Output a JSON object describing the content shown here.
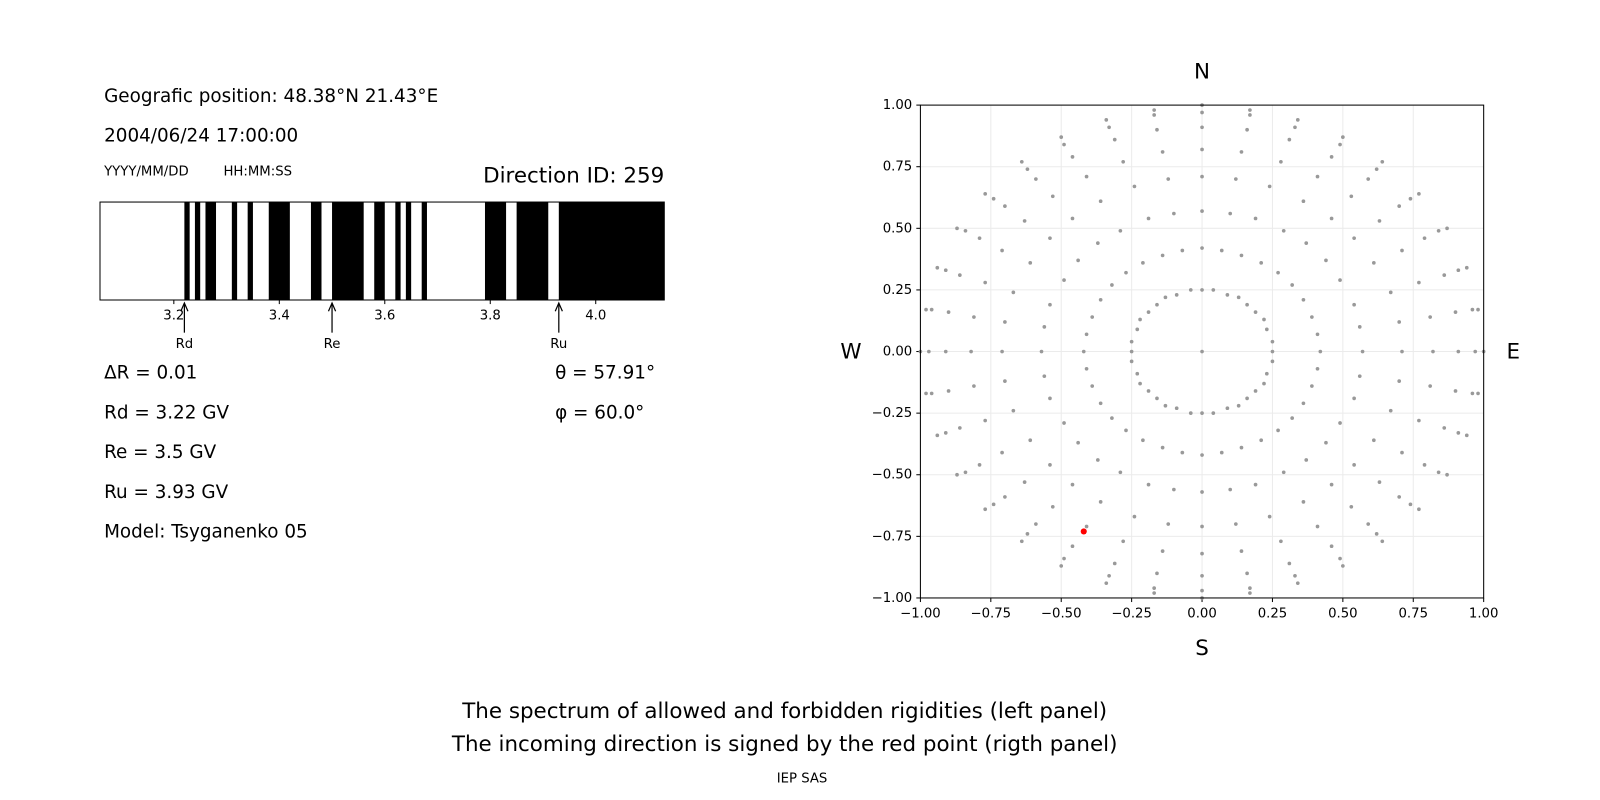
{
  "info": {
    "position": "Geografic position: 48.38°N 21.43°E",
    "datetime": "2004/06/24 17:00:00",
    "date_format": "YYYY/MM/DD",
    "time_format": "HH:MM:SS",
    "direction_id": "Direction ID: 259",
    "delta_r": "ΔR = 0.01",
    "rd": "Rd = 3.22 GV",
    "re": "Re = 3.5 GV",
    "ru": "Ru = 3.93 GV",
    "model": "Model: Tsyganenko 05",
    "theta": "θ = 57.91°",
    "phi": "φ = 60.0°"
  },
  "caption": [
    "The spectrum of allowed and forbidden rigidities (left panel)",
    "The incoming direction is signed by the red point (rigth panel)"
  ],
  "footer": "IEP SAS",
  "chart_data": [
    {
      "type": "spectrum",
      "color": "#000000",
      "xlim": [
        3.06,
        4.13
      ],
      "xticks": [
        3.2,
        3.4,
        3.6,
        3.8,
        {
          "value": 4,
          "label": "4.0"
        }
      ],
      "segments": [
        [
          3.22,
          3.23
        ],
        [
          3.24,
          3.25
        ],
        [
          3.26,
          3.28
        ],
        [
          3.31,
          3.32
        ],
        [
          3.34,
          3.35
        ],
        [
          3.38,
          3.42
        ],
        [
          3.46,
          3.48
        ],
        [
          3.5,
          3.56
        ],
        [
          3.58,
          3.6
        ],
        [
          3.62,
          3.63
        ],
        [
          3.64,
          3.65
        ],
        [
          3.67,
          3.68
        ],
        [
          3.79,
          3.83
        ],
        [
          3.85,
          3.91
        ],
        [
          3.93,
          4.13
        ]
      ],
      "markers": [
        {
          "label": "Rd",
          "value": 3.22
        },
        {
          "label": "Re",
          "value": 3.5
        },
        {
          "label": "Ru",
          "value": 3.93
        }
      ]
    },
    {
      "type": "scatter",
      "labels": {
        "top": "N",
        "bottom": "S",
        "left": "W",
        "right": "E"
      },
      "xlim": [
        -1,
        1
      ],
      "ylim": [
        -1,
        1
      ],
      "grid": true,
      "xticks": [
        {
          "value": -1,
          "label": "−1.00"
        },
        {
          "value": -0.75,
          "label": "−0.75"
        },
        {
          "value": -0.5,
          "label": "−0.50"
        },
        {
          "value": -0.25,
          "label": "−0.25"
        },
        {
          "value": 0,
          "label": "0.00"
        },
        {
          "value": 0.25,
          "label": "0.25"
        },
        {
          "value": 0.5,
          "label": "0.50"
        },
        {
          "value": 0.75,
          "label": "0.75"
        },
        {
          "value": 1,
          "label": "1.00"
        }
      ],
      "yticks": [
        {
          "value": -1,
          "label": "−1.00"
        },
        {
          "value": -0.75,
          "label": "−0.75"
        },
        {
          "value": -0.5,
          "label": "−0.50"
        },
        {
          "value": -0.25,
          "label": "−0.25"
        },
        {
          "value": 0,
          "label": "0.00"
        },
        {
          "value": 0.25,
          "label": "0.25"
        },
        {
          "value": 0.5,
          "label": "0.50"
        },
        {
          "value": 0.75,
          "label": "0.75"
        },
        {
          "value": 1,
          "label": "1.00"
        }
      ],
      "series": [
        {
          "color": "#999999",
          "x": [
            0,
            0,
            0.04,
            0.09,
            0.13,
            0.16,
            0.19,
            0.22,
            0.23,
            0.25,
            0.25,
            0.25,
            0.23,
            0.22,
            0.19,
            0.16,
            0.13,
            0.09,
            0.04,
            0,
            -0.04,
            -0.09,
            -0.13,
            -0.16,
            -0.19,
            -0.22,
            -0.23,
            -0.25,
            -0.25,
            -0.25,
            -0.23,
            -0.22,
            -0.19,
            -0.16,
            -0.13,
            -0.09,
            -0.04,
            0,
            0.07,
            0.14,
            0.21,
            0.27,
            0.32,
            0.36,
            0.39,
            0.41,
            0.42,
            0.41,
            0.39,
            0.36,
            0.32,
            0.27,
            0.21,
            0.14,
            0.07,
            0,
            -0.07,
            -0.14,
            -0.21,
            -0.27,
            -0.32,
            -0.36,
            -0.39,
            -0.41,
            -0.42,
            -0.41,
            -0.39,
            -0.36,
            -0.32,
            -0.27,
            -0.21,
            -0.14,
            -0.07,
            0,
            0.1,
            0.19,
            0.29,
            0.37,
            0.44,
            0.49,
            0.54,
            0.56,
            0.57,
            0.56,
            0.54,
            0.49,
            0.44,
            0.37,
            0.29,
            0.19,
            0.1,
            0,
            -0.1,
            -0.19,
            -0.29,
            -0.37,
            -0.44,
            -0.49,
            -0.54,
            -0.56,
            -0.57,
            -0.56,
            -0.54,
            -0.49,
            -0.44,
            -0.37,
            -0.29,
            -0.19,
            -0.1,
            0,
            0.12,
            0.24,
            0.36,
            0.46,
            0.54,
            0.61,
            0.67,
            0.7,
            0.71,
            0.7,
            0.67,
            0.61,
            0.54,
            0.46,
            0.36,
            0.24,
            0.12,
            0,
            -0.12,
            -0.24,
            -0.36,
            -0.46,
            -0.54,
            -0.61,
            -0.67,
            -0.7,
            -0.71,
            -0.7,
            -0.67,
            -0.61,
            -0.54,
            -0.46,
            -0.36,
            -0.24,
            -0.12,
            0,
            0.14,
            0.28,
            0.41,
            0.53,
            0.63,
            0.71,
            0.77,
            0.81,
            0.82,
            0.81,
            0.77,
            0.71,
            0.63,
            0.53,
            0.41,
            0.28,
            0.14,
            0,
            -0.14,
            -0.28,
            -0.41,
            -0.53,
            -0.63,
            -0.71,
            -0.77,
            -0.81,
            -0.82,
            -0.81,
            -0.77,
            -0.71,
            -0.63,
            -0.53,
            -0.41,
            -0.28,
            -0.14,
            0,
            0.16,
            0.31,
            0.46,
            0.59,
            0.7,
            0.79,
            0.86,
            0.9,
            0.91,
            0.9,
            0.86,
            0.79,
            0.7,
            0.59,
            0.46,
            0.31,
            0.16,
            0,
            -0.16,
            -0.31,
            -0.46,
            -0.59,
            -0.7,
            -0.79,
            -0.86,
            -0.9,
            -0.91,
            -0.9,
            -0.86,
            -0.79,
            -0.7,
            -0.59,
            -0.46,
            -0.31,
            -0.16,
            0,
            0.17,
            0.33,
            0.49,
            0.62,
            0.74,
            0.84,
            0.91,
            0.96,
            0.97,
            0.96,
            0.91,
            0.84,
            0.74,
            0.62,
            0.49,
            0.33,
            0.17,
            0,
            -0.17,
            -0.33,
            -0.49,
            -0.62,
            -0.74,
            -0.84,
            -0.91,
            -0.96,
            -0.97,
            -0.96,
            -0.91,
            -0.84,
            -0.74,
            -0.62,
            -0.49,
            -0.33,
            -0.17,
            0,
            0.17,
            0.34,
            0.5,
            0.64,
            0.77,
            0.87,
            0.94,
            0.98,
            1,
            0.98,
            0.94,
            0.87,
            0.77,
            0.64,
            0.5,
            0.34,
            0.17,
            0,
            -0.17,
            -0.34,
            -0.5,
            -0.64,
            -0.77,
            -0.87,
            -0.94,
            -0.98,
            -1,
            -0.98,
            -0.94,
            -0.87,
            -0.77,
            -0.64,
            -0.5,
            -0.34,
            -0.17
          ],
          "y": [
            0,
            0.25,
            0.25,
            0.23,
            0.22,
            0.19,
            0.16,
            0.13,
            0.09,
            0.04,
            0,
            -0.04,
            -0.09,
            -0.13,
            -0.16,
            -0.19,
            -0.22,
            -0.23,
            -0.25,
            -0.25,
            -0.25,
            -0.23,
            -0.22,
            -0.19,
            -0.16,
            -0.13,
            -0.09,
            -0.04,
            0,
            0.04,
            0.09,
            0.13,
            0.16,
            0.19,
            0.22,
            0.23,
            0.25,
            0.42,
            0.41,
            0.39,
            0.36,
            0.32,
            0.27,
            0.21,
            0.14,
            0.07,
            0,
            -0.07,
            -0.14,
            -0.21,
            -0.27,
            -0.32,
            -0.36,
            -0.39,
            -0.41,
            -0.42,
            -0.41,
            -0.39,
            -0.36,
            -0.32,
            -0.27,
            -0.21,
            -0.14,
            -0.07,
            0,
            0.07,
            0.14,
            0.21,
            0.27,
            0.32,
            0.36,
            0.39,
            0.41,
            0.57,
            0.56,
            0.54,
            0.49,
            0.44,
            0.37,
            0.29,
            0.19,
            0.1,
            0,
            -0.1,
            -0.19,
            -0.29,
            -0.37,
            -0.44,
            -0.49,
            -0.54,
            -0.56,
            -0.57,
            -0.56,
            -0.54,
            -0.49,
            -0.44,
            -0.37,
            -0.29,
            -0.19,
            -0.1,
            0,
            0.1,
            0.19,
            0.29,
            0.37,
            0.44,
            0.49,
            0.54,
            0.56,
            0.71,
            0.7,
            0.67,
            0.61,
            0.54,
            0.46,
            0.36,
            0.24,
            0.12,
            0,
            -0.12,
            -0.24,
            -0.36,
            -0.46,
            -0.54,
            -0.61,
            -0.67,
            -0.7,
            -0.71,
            -0.7,
            -0.67,
            -0.61,
            -0.54,
            -0.46,
            -0.36,
            -0.24,
            -0.12,
            0,
            0.12,
            0.24,
            0.36,
            0.46,
            0.54,
            0.61,
            0.67,
            0.7,
            0.82,
            0.81,
            0.77,
            0.71,
            0.63,
            0.53,
            0.41,
            0.28,
            0.14,
            0,
            -0.14,
            -0.28,
            -0.41,
            -0.53,
            -0.63,
            -0.71,
            -0.77,
            -0.81,
            -0.82,
            -0.81,
            -0.77,
            -0.71,
            -0.63,
            -0.53,
            -0.41,
            -0.28,
            -0.14,
            0,
            0.14,
            0.28,
            0.41,
            0.53,
            0.63,
            0.71,
            0.77,
            0.81,
            0.91,
            0.9,
            0.86,
            0.79,
            0.7,
            0.59,
            0.46,
            0.31,
            0.16,
            0,
            -0.16,
            -0.31,
            -0.46,
            -0.59,
            -0.7,
            -0.79,
            -0.86,
            -0.9,
            -0.91,
            -0.9,
            -0.86,
            -0.79,
            -0.7,
            -0.59,
            -0.46,
            -0.31,
            -0.16,
            0,
            0.16,
            0.31,
            0.46,
            0.59,
            0.7,
            0.79,
            0.86,
            0.9,
            0.97,
            0.96,
            0.91,
            0.84,
            0.74,
            0.62,
            0.49,
            0.33,
            0.17,
            0,
            -0.17,
            -0.33,
            -0.49,
            -0.62,
            -0.74,
            -0.84,
            -0.91,
            -0.96,
            -0.97,
            -0.96,
            -0.91,
            -0.84,
            -0.74,
            -0.62,
            -0.49,
            -0.33,
            -0.17,
            0,
            0.17,
            0.33,
            0.49,
            0.62,
            0.74,
            0.84,
            0.91,
            0.96,
            1,
            0.98,
            0.94,
            0.87,
            0.77,
            0.64,
            0.5,
            0.34,
            0.17,
            0,
            -0.17,
            -0.34,
            -0.5,
            -0.64,
            -0.77,
            -0.87,
            -0.94,
            -0.98,
            -1,
            -0.98,
            -0.94,
            -0.87,
            -0.77,
            -0.64,
            -0.5,
            -0.34,
            -0.17,
            0,
            0.17,
            0.34,
            0.5,
            0.64,
            0.77,
            0.87,
            0.94,
            0.98
          ]
        },
        {
          "color": "#ff0000",
          "x": [
            -0.42
          ],
          "y": [
            -0.73
          ]
        }
      ]
    }
  ]
}
